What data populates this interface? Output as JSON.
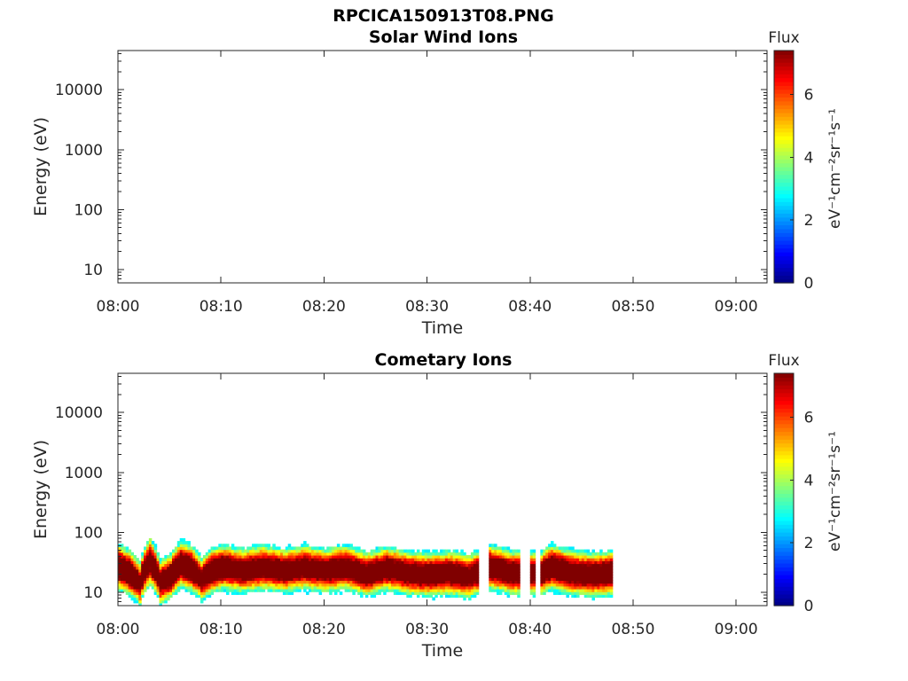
{
  "figure": {
    "title": "RPCICA150913T08.PNG"
  },
  "colorbar": {
    "title": "Flux",
    "unit_label": "eV⁻¹cm⁻²sr⁻¹s⁻¹",
    "ticks": [
      "0",
      "2",
      "4",
      "6"
    ],
    "range": [
      0,
      7.4
    ],
    "colormap": "jet"
  },
  "chart_data": [
    {
      "type": "heatmap",
      "title": "Solar Wind Ions",
      "xlabel": "Time",
      "ylabel": "Energy (eV)",
      "yscale": "log",
      "ylim": [
        6,
        45000
      ],
      "xlim": [
        "08:00",
        "09:03"
      ],
      "x_ticks": [
        "08:00",
        "08:10",
        "08:20",
        "08:30",
        "08:40",
        "08:50",
        "09:00"
      ],
      "y_ticks": [
        "10",
        "100",
        "1000",
        "10000"
      ],
      "series": []
    },
    {
      "type": "heatmap",
      "title": "Cometary Ions",
      "xlabel": "Time",
      "ylabel": "Energy (eV)",
      "yscale": "log",
      "ylim": [
        6,
        45000
      ],
      "xlim": [
        "08:00",
        "09:03"
      ],
      "x_ticks": [
        "08:00",
        "08:10",
        "08:20",
        "08:30",
        "08:40",
        "08:50",
        "09:00"
      ],
      "y_ticks": [
        "10",
        "100",
        "1000",
        "10000"
      ],
      "data_time_range": [
        "08:00",
        "08:48"
      ],
      "energy_range_eV": [
        6,
        80
      ],
      "flux_profile": [
        {
          "time": "08:00",
          "peak_energy_eV": 30,
          "peak_flux": 7.0
        },
        {
          "time": "08:01",
          "peak_energy_eV": 22,
          "peak_flux": 6.8
        },
        {
          "time": "08:02",
          "peak_energy_eV": 12,
          "peak_flux": 6.0
        },
        {
          "time": "08:03",
          "peak_energy_eV": 40,
          "peak_flux": 7.0
        },
        {
          "time": "08:04",
          "peak_energy_eV": 13,
          "peak_flux": 6.0
        },
        {
          "time": "08:05",
          "peak_energy_eV": 18,
          "peak_flux": 6.6
        },
        {
          "time": "08:06",
          "peak_energy_eV": 35,
          "peak_flux": 7.0
        },
        {
          "time": "08:07",
          "peak_energy_eV": 28,
          "peak_flux": 6.8
        },
        {
          "time": "08:08",
          "peak_energy_eV": 15,
          "peak_flux": 5.6
        },
        {
          "time": "08:09",
          "peak_energy_eV": 25,
          "peak_flux": 7.0
        },
        {
          "time": "08:10",
          "peak_energy_eV": 30,
          "peak_flux": 6.6
        },
        {
          "time": "08:12",
          "peak_energy_eV": 25,
          "peak_flux": 6.2
        },
        {
          "time": "08:14",
          "peak_energy_eV": 30,
          "peak_flux": 6.4
        },
        {
          "time": "08:16",
          "peak_energy_eV": 25,
          "peak_flux": 6.3
        },
        {
          "time": "08:18",
          "peak_energy_eV": 30,
          "peak_flux": 6.2
        },
        {
          "time": "08:20",
          "peak_energy_eV": 25,
          "peak_flux": 6.3
        },
        {
          "time": "08:22",
          "peak_energy_eV": 30,
          "peak_flux": 6.4
        },
        {
          "time": "08:24",
          "peak_energy_eV": 20,
          "peak_flux": 6.2
        },
        {
          "time": "08:26",
          "peak_energy_eV": 28,
          "peak_flux": 6.3
        },
        {
          "time": "08:28",
          "peak_energy_eV": 22,
          "peak_flux": 6.2
        },
        {
          "time": "08:30",
          "peak_energy_eV": 20,
          "peak_flux": 6.3
        },
        {
          "time": "08:32",
          "peak_energy_eV": 22,
          "peak_flux": 6.3
        },
        {
          "time": "08:34",
          "peak_energy_eV": 18,
          "peak_flux": 6.1
        },
        {
          "time": "08:36",
          "peak_energy_eV": 30,
          "peak_flux": 6.6
        },
        {
          "time": "08:38",
          "peak_energy_eV": 22,
          "peak_flux": 6.4
        },
        {
          "time": "08:41",
          "peak_energy_eV": 22,
          "peak_flux": 6.0
        },
        {
          "time": "08:42",
          "peak_energy_eV": 30,
          "peak_flux": 6.8
        },
        {
          "time": "08:44",
          "peak_energy_eV": 22,
          "peak_flux": 6.4
        },
        {
          "time": "08:46",
          "peak_energy_eV": 20,
          "peak_flux": 6.4
        },
        {
          "time": "08:48",
          "peak_energy_eV": 22,
          "peak_flux": 6.6
        }
      ],
      "gaps": [
        [
          "08:35",
          "08:36"
        ],
        [
          "08:39",
          "08:40"
        ],
        [
          "08:40.5",
          "08:41"
        ]
      ]
    }
  ]
}
